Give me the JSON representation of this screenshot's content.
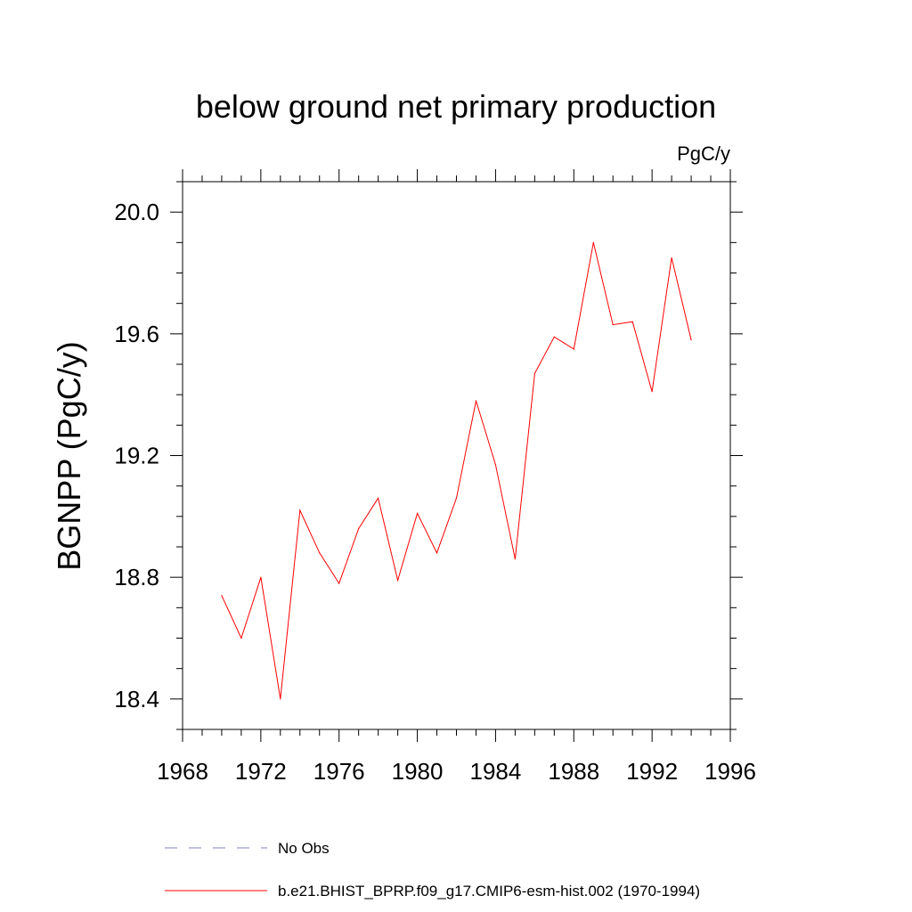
{
  "chart_data": {
    "type": "line",
    "title": "below ground net primary production",
    "units_label": "PgC/y",
    "ylabel": "BGNPP  (PgC/y)",
    "xlabel": "",
    "xlim": [
      1968,
      1996
    ],
    "ylim": [
      18.3,
      20.1
    ],
    "x_ticks": [
      1968,
      1972,
      1976,
      1980,
      1984,
      1988,
      1992,
      1996
    ],
    "x_tick_labels": [
      "1968",
      "1972",
      "1976",
      "1980",
      "1984",
      "1988",
      "1992",
      "1996"
    ],
    "y_ticks": [
      18.4,
      18.8,
      19.2,
      19.6,
      20.0
    ],
    "y_tick_labels": [
      "18.4",
      "18.8",
      "19.2",
      "19.6",
      "20.0"
    ],
    "grid": false,
    "legend_position": "bottom",
    "legend": [
      {
        "label": "No Obs",
        "style": "dashed",
        "color": "#8080c0"
      },
      {
        "label": "b.e21.BHIST_BPRP.f09_g17.CMIP6-esm-hist.002 (1970-1994)",
        "style": "solid",
        "color": "#ff0000"
      }
    ],
    "series": [
      {
        "name": "b.e21.BHIST_BPRP.f09_g17.CMIP6-esm-hist.002 (1970-1994)",
        "color": "#ff0000",
        "x": [
          1970,
          1971,
          1972,
          1973,
          1974,
          1975,
          1976,
          1977,
          1978,
          1979,
          1980,
          1981,
          1982,
          1983,
          1984,
          1985,
          1986,
          1987,
          1988,
          1989,
          1990,
          1991,
          1992,
          1993,
          1994
        ],
        "values": [
          18.74,
          18.6,
          18.8,
          18.4,
          19.02,
          18.88,
          18.78,
          18.96,
          19.06,
          18.79,
          19.01,
          18.88,
          19.06,
          19.38,
          19.17,
          18.86,
          19.47,
          19.59,
          19.55,
          19.9,
          19.63,
          19.64,
          19.41,
          19.85,
          19.58
        ]
      }
    ]
  }
}
